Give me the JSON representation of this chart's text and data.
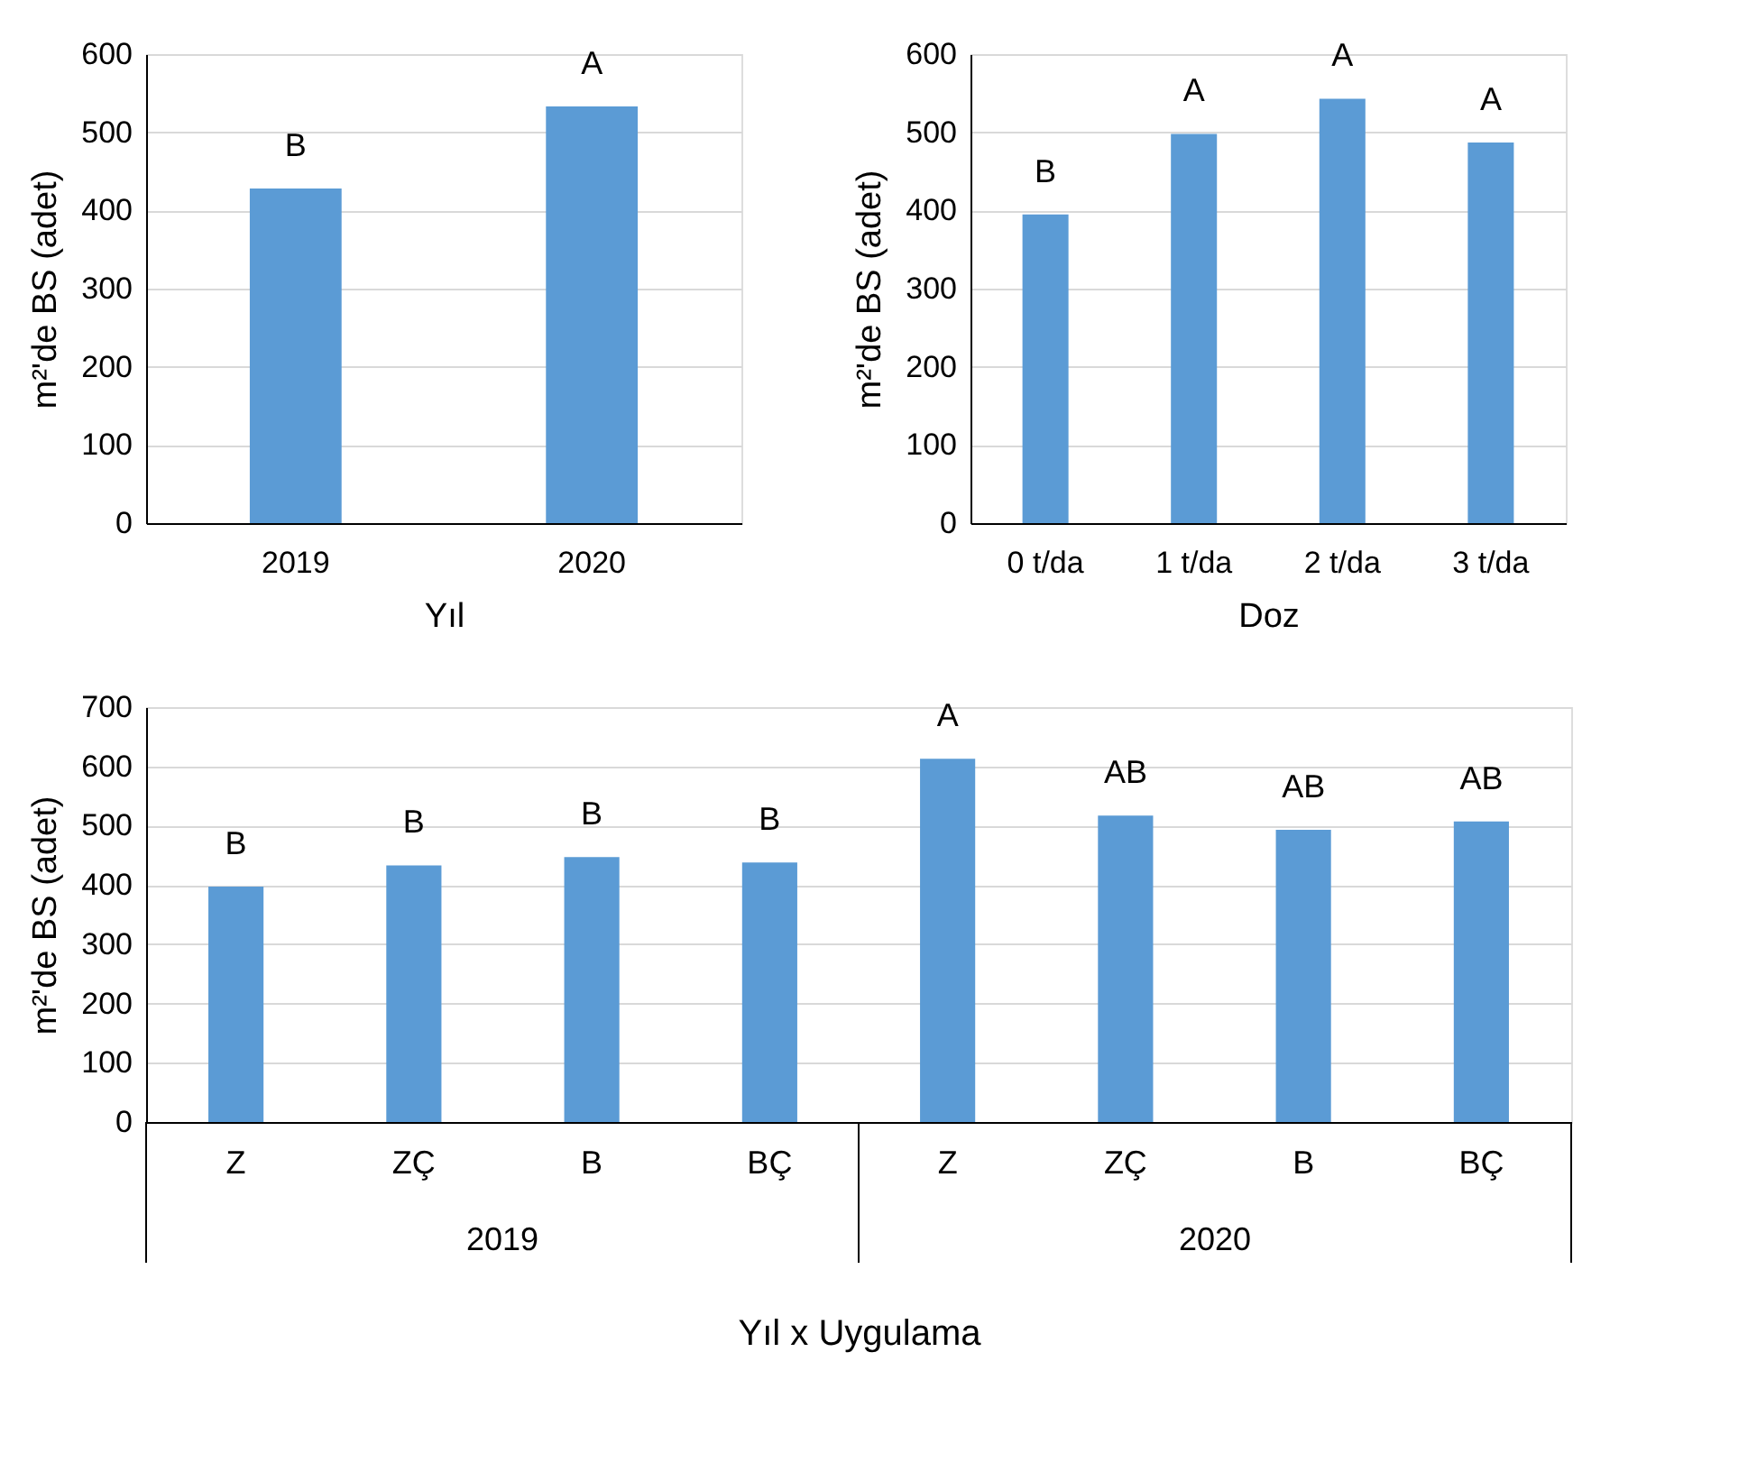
{
  "chart_data": [
    {
      "type": "bar",
      "categories": [
        "2019",
        "2020"
      ],
      "values": [
        428,
        533
      ],
      "value_labels": [
        "B",
        "A"
      ],
      "color": "#5b9bd5",
      "xlabel": "Yıl",
      "ylabel": "m²'de BS (adet)",
      "ylim": [
        0,
        600
      ],
      "yticks": [
        0,
        100,
        200,
        300,
        400,
        500,
        600
      ],
      "grid": "y"
    },
    {
      "type": "bar",
      "categories": [
        "0 t/da",
        "1 t/da",
        "2 t/da",
        "3 t/da"
      ],
      "values": [
        395,
        498,
        543,
        487
      ],
      "value_labels": [
        "B",
        "A",
        "A",
        "A"
      ],
      "color": "#5b9bd5",
      "xlabel": "Doz",
      "ylabel": "m²'de BS (adet)",
      "ylim": [
        0,
        600
      ],
      "yticks": [
        0,
        100,
        200,
        300,
        400,
        500,
        600
      ],
      "grid": "y"
    },
    {
      "type": "bar",
      "categories": [
        "Z",
        "ZÇ",
        "B",
        "BÇ",
        "Z",
        "ZÇ",
        "B",
        "BÇ"
      ],
      "values": [
        397,
        433,
        447,
        438,
        613,
        517,
        493,
        507
      ],
      "value_labels": [
        "B",
        "B",
        "B",
        "B",
        "A",
        "AB",
        "AB",
        "AB"
      ],
      "color": "#5b9bd5",
      "xlabel": "Yıl x Uygulama",
      "ylabel": "m²'de BS (adet)",
      "ylim": [
        0,
        700
      ],
      "yticks": [
        0,
        100,
        200,
        300,
        400,
        500,
        600,
        700
      ],
      "grid": "y",
      "annotations": [
        "2019",
        "2020"
      ]
    }
  ]
}
